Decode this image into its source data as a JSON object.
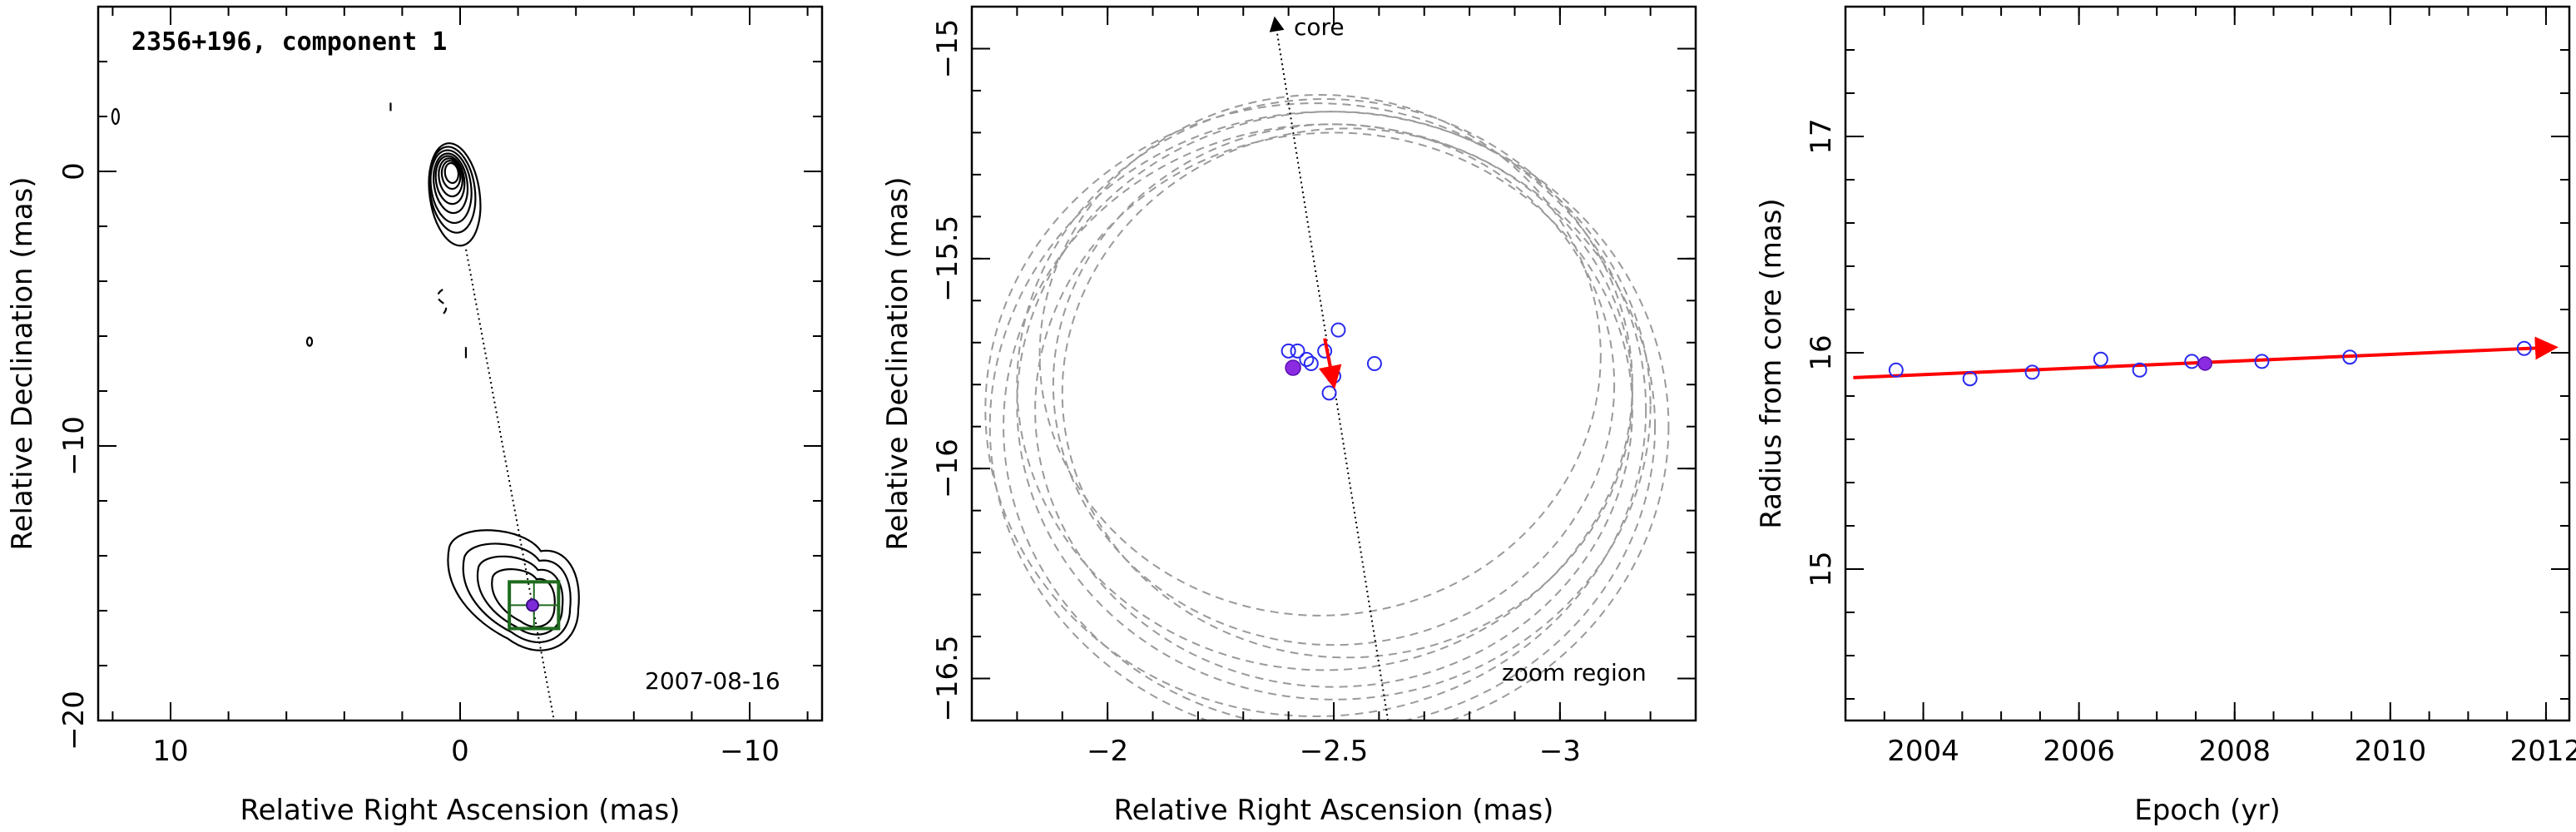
{
  "chart_data": [
    {
      "type": "contour",
      "title": "2356+196, component 1",
      "annotation": "2007-08-16",
      "xlabel": "Relative Right Ascension (mas)",
      "ylabel": "Relative Declination (mas)",
      "xlim": [
        12.5,
        -12.5
      ],
      "ylim": [
        -20,
        6
      ],
      "xticks": [
        10,
        0,
        -10
      ],
      "yticks": [
        0,
        -10,
        -20
      ],
      "core_position": [
        0.3,
        0
      ],
      "component_position": [
        -2.5,
        -15.8
      ],
      "zoom_box": {
        "center": [
          -2.55,
          -15.8
        ],
        "half_size": 0.85
      }
    },
    {
      "type": "scatter",
      "xlabel": "Relative Right Ascension (mas)",
      "ylabel": "Relative Declination (mas)",
      "xlim": [
        -1.7,
        -3.3
      ],
      "ylim": [
        -16.6,
        -14.9
      ],
      "xticks": [
        -2,
        -2.5,
        -3
      ],
      "yticks": [
        -15,
        -15.5,
        -16,
        -16.5
      ],
      "core_label": "core",
      "region_label": "zoom region",
      "points": [
        [
          -2.4,
          -15.72
        ],
        [
          -2.42,
          -15.72
        ],
        [
          -2.44,
          -15.74
        ],
        [
          -2.48,
          -15.72
        ],
        [
          -2.51,
          -15.67
        ],
        [
          -2.59,
          -15.75
        ],
        [
          -2.5,
          -15.78
        ],
        [
          -2.49,
          -15.82
        ],
        [
          -2.45,
          -15.75
        ]
      ],
      "highlight_point": [
        -2.41,
        -15.76
      ],
      "motion_vector": {
        "start": [
          -2.48,
          -15.69
        ],
        "end": [
          -2.5,
          -15.8
        ]
      },
      "circles": [
        {
          "center": [
            -2.47,
            -15.73
          ],
          "radius": 0.62
        },
        {
          "center": [
            -2.5,
            -15.8
          ],
          "radius": 0.62
        },
        {
          "center": [
            -2.48,
            -15.8
          ],
          "radius": 0.68
        },
        {
          "center": [
            -2.5,
            -15.85
          ],
          "radius": 0.7
        },
        {
          "center": [
            -2.5,
            -15.86
          ],
          "radius": 0.66
        },
        {
          "center": [
            -2.49,
            -15.9
          ],
          "radius": 0.75
        },
        {
          "center": [
            -2.49,
            -15.9
          ],
          "radius": 0.72
        },
        {
          "center": [
            -2.46,
            -15.86
          ],
          "radius": 0.73
        },
        {
          "center": [
            -2.53,
            -15.82
          ],
          "radius": 0.63
        }
      ]
    },
    {
      "type": "scatter",
      "xlabel": "Epoch (yr)",
      "ylabel": "Radius from core (mas)",
      "xlim": [
        2003,
        2012.3
      ],
      "ylim": [
        14.3,
        17.6
      ],
      "xticks": [
        2004,
        2006,
        2008,
        2010,
        2012
      ],
      "yticks": [
        15,
        16,
        17
      ],
      "points": [
        [
          2003.65,
          15.92
        ],
        [
          2004.6,
          15.88
        ],
        [
          2005.4,
          15.91
        ],
        [
          2006.28,
          15.97
        ],
        [
          2006.78,
          15.92
        ],
        [
          2007.45,
          15.96
        ],
        [
          2008.35,
          15.96
        ],
        [
          2009.48,
          15.98
        ],
        [
          2011.72,
          16.02
        ]
      ],
      "highlight_point": [
        2007.62,
        15.95
      ],
      "fit_line": {
        "x": [
          2003.1,
          2012.1
        ],
        "y": [
          15.885,
          16.025
        ]
      }
    }
  ]
}
